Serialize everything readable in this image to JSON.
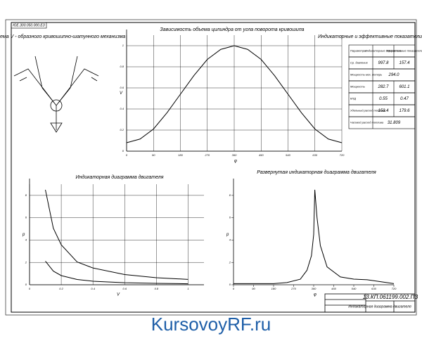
{
  "frame_code": "ЮЕ.300.050.000.ЕЗ",
  "scheme": {
    "title": "Схема V - образного кривошипно-шатунного механизма"
  },
  "table": {
    "title": "Индикаторные и эффективные показатели двигателя",
    "header": [
      "Параметры",
      "Индикаторные показатели",
      "Эффективные показатели"
    ],
    "rows": [
      [
        "Ср. давление",
        "997.8",
        "157.4"
      ],
      [
        "Мощность мех. потерь",
        "294.0"
      ],
      [
        "Мощность",
        "282.7",
        "601.1"
      ],
      [
        "КПД",
        "0.55",
        "0.47"
      ],
      [
        "Удельный расход топлива",
        "153.4",
        "179.6"
      ],
      [
        "Часовой расход топлива",
        "31.809"
      ]
    ]
  },
  "chart_data": [
    {
      "type": "line",
      "title": "Зависимость объема цилиндра от угла поворота кривошипа",
      "y_label": "V",
      "x_label": "φ",
      "xlim": [
        0,
        720
      ],
      "xticks": [
        0,
        90,
        180,
        270,
        360,
        450,
        540,
        630,
        720
      ],
      "ylim": [
        0,
        1.1
      ],
      "yticks": [
        0,
        0.2,
        0.4,
        0.6,
        0.8,
        1
      ],
      "grid": true,
      "series": [
        {
          "color": "#000",
          "x": [
            0,
            45,
            90,
            135,
            180,
            225,
            270,
            315,
            360,
            405,
            450,
            495,
            540,
            585,
            630,
            675,
            720
          ],
          "values": [
            0.08,
            0.115,
            0.21,
            0.364,
            0.54,
            0.716,
            0.87,
            0.965,
            1,
            0.965,
            0.87,
            0.716,
            0.54,
            0.364,
            0.21,
            0.115,
            0.08
          ]
        }
      ]
    },
    {
      "type": "line",
      "title": "Индикаторная диаграмма двигателя",
      "y_label": "p",
      "x_label": "V",
      "xlim": [
        0,
        1.1
      ],
      "xticks": [
        0,
        0.2,
        0.4,
        0.6,
        0.8,
        1
      ],
      "ylim": [
        0,
        9
      ],
      "yticks": [
        0,
        2,
        4,
        6,
        8
      ],
      "grid": true,
      "series": [
        {
          "color": "#000",
          "x": [
            0.1,
            0.15,
            0.2,
            0.3,
            0.4,
            0.6,
            0.8,
            1
          ],
          "values": [
            8.5,
            5.06,
            3.57,
            2.04,
            1.5,
            0.91,
            0.63,
            0.48
          ]
        },
        {
          "color": "#000",
          "x": [
            1,
            0.8,
            0.6,
            0.4,
            0.3,
            0.2,
            0.15,
            0.1
          ],
          "values": [
            0.09,
            0.123,
            0.182,
            0.316,
            0.47,
            0.82,
            1.22,
            2.11
          ]
        }
      ]
    },
    {
      "type": "line",
      "title": "Развернутая индикаторная диаграмма двигателя",
      "y_label": "p",
      "x_label": "φ",
      "xlim": [
        0,
        720
      ],
      "xticks": [
        0,
        90,
        180,
        270,
        360,
        450,
        540,
        630,
        720
      ],
      "ylim": [
        0,
        9
      ],
      "yticks": [
        0,
        2,
        4,
        6,
        8
      ],
      "grid": false,
      "series": [
        {
          "color": "#000",
          "x": [
            0,
            180,
            240,
            300,
            330,
            350,
            360,
            365,
            375,
            390,
            420,
            480,
            540,
            600,
            720
          ],
          "values": [
            0.1,
            0.1,
            0.2,
            0.5,
            1.3,
            2.6,
            4.5,
            8.5,
            6,
            3.5,
            1.6,
            0.7,
            0.5,
            0.45,
            0.1
          ]
        }
      ]
    }
  ],
  "stamp": {
    "code": "13.КП.061199.002.ПЗ",
    "title": "Индикаторная диаграмма двигателя"
  },
  "watermark": "KursovoyRF.ru"
}
